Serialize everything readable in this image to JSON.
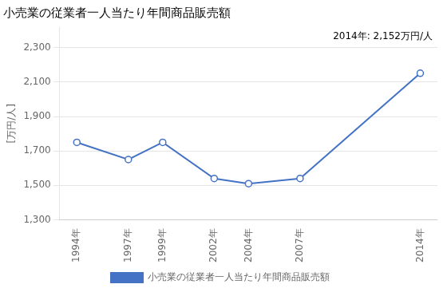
{
  "chart_data": {
    "type": "line",
    "title": "小売業の従業者一人当たり年間商品販売額",
    "ylabel": "[万円/人]",
    "annotations": [
      "2014年: 2,152万円/人"
    ],
    "x": [
      1994,
      1997,
      1999,
      2002,
      2004,
      2007,
      2014
    ],
    "xlim": [
      1993,
      2015
    ],
    "xticks": [
      {
        "value": 1994,
        "label": "1994年"
      },
      {
        "value": 1997,
        "label": "1997年"
      },
      {
        "value": 1999,
        "label": "1999年"
      },
      {
        "value": 2002,
        "label": "2002年"
      },
      {
        "value": 2004,
        "label": "2004年"
      },
      {
        "value": 2007,
        "label": "2007年"
      },
      {
        "value": 2014,
        "label": "2014年"
      }
    ],
    "series": [
      {
        "name": "小売業の従業者一人当たり年間商品販売額",
        "color": "#4472C4",
        "marker": "circle",
        "values": [
          1750,
          1650,
          1750,
          1540,
          1510,
          1540,
          2152
        ]
      }
    ],
    "ylim": [
      1300,
      2420
    ],
    "yticks": [
      {
        "value": 1300,
        "label": "1,300"
      },
      {
        "value": 1500,
        "label": "1,500"
      },
      {
        "value": 1700,
        "label": "1,700"
      },
      {
        "value": 1900,
        "label": "1,900"
      },
      {
        "value": 2100,
        "label": "2,100"
      },
      {
        "value": 2300,
        "label": "2,300"
      }
    ],
    "grid": "y",
    "legend": "bottom"
  }
}
